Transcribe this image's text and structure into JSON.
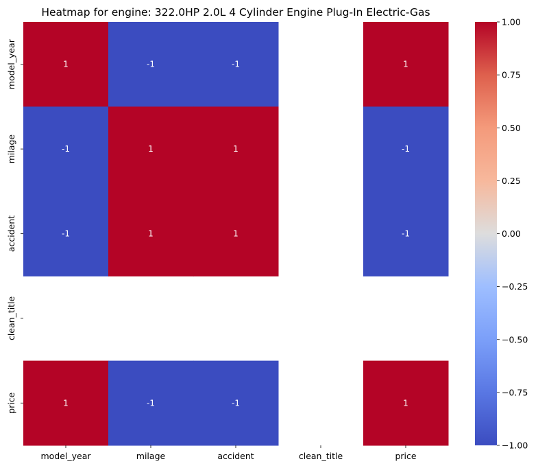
{
  "chart_data": {
    "type": "heatmap",
    "title": "Heatmap for engine: 322.0HP 2.0L 4 Cylinder Engine Plug-In Electric-Gas",
    "x_labels": [
      "model_year",
      "milage",
      "accident",
      "clean_title",
      "price"
    ],
    "y_labels": [
      "model_year",
      "milage",
      "accident",
      "clean_title",
      "price"
    ],
    "values": [
      [
        1,
        -1,
        -1,
        null,
        1
      ],
      [
        -1,
        1,
        1,
        null,
        -1
      ],
      [
        -1,
        1,
        1,
        null,
        -1
      ],
      [
        null,
        null,
        null,
        null,
        null
      ],
      [
        1,
        -1,
        -1,
        null,
        1
      ]
    ],
    "cell_labels": [
      [
        "1",
        "-1",
        "-1",
        "",
        "1"
      ],
      [
        "-1",
        "1",
        "1",
        "",
        "-1"
      ],
      [
        "-1",
        "1",
        "1",
        "",
        "-1"
      ],
      [
        "",
        "",
        "",
        "",
        ""
      ],
      [
        "1",
        "-1",
        "-1",
        "",
        "1"
      ]
    ],
    "colormap": "coolwarm",
    "colors": {
      "low": "#3b4cc0",
      "mid": "#dddddd",
      "high": "#b40426"
    },
    "vmin": -1,
    "vmax": 1,
    "colorbar": {
      "ticks": [
        1.0,
        0.75,
        0.5,
        0.25,
        0.0,
        -0.25,
        -0.5,
        -0.75,
        -1.0
      ],
      "tick_labels": [
        "1.00",
        "0.75",
        "0.50",
        "0.25",
        "0.00",
        "−0.25",
        "−0.50",
        "−0.75",
        "−1.00"
      ]
    }
  }
}
